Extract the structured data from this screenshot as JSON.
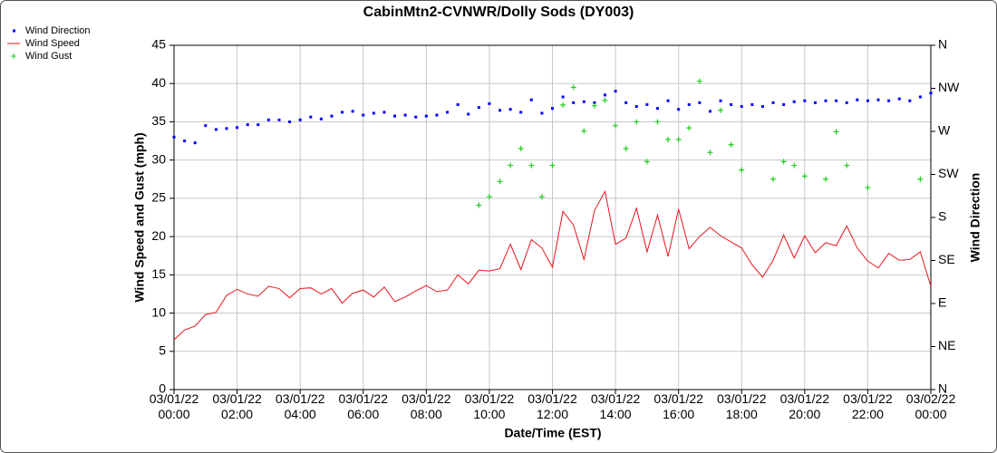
{
  "chart_data": {
    "type": "line",
    "title": "CabinMtn2-CVNWR/Dolly Sods (DY003)",
    "xlabel": "Date/Time (EST)",
    "ylabel": "Wind Speed and Gust (mph)",
    "y2label": "Wind Direction",
    "x": [
      "03/01/22 00:00",
      "03/01/22 00:20",
      "03/01/22 00:40",
      "03/01/22 01:00",
      "03/01/22 01:20",
      "03/01/22 01:40",
      "03/01/22 02:00",
      "03/01/22 02:20",
      "03/01/22 02:40",
      "03/01/22 03:00",
      "03/01/22 03:20",
      "03/01/22 03:40",
      "03/01/22 04:00",
      "03/01/22 04:20",
      "03/01/22 04:40",
      "03/01/22 05:00",
      "03/01/22 05:20",
      "03/01/22 05:40",
      "03/01/22 06:00",
      "03/01/22 06:20",
      "03/01/22 06:40",
      "03/01/22 07:00",
      "03/01/22 07:20",
      "03/01/22 07:40",
      "03/01/22 08:00",
      "03/01/22 08:20",
      "03/01/22 08:40",
      "03/01/22 09:00",
      "03/01/22 09:20",
      "03/01/22 09:40",
      "03/01/22 10:00",
      "03/01/22 10:20",
      "03/01/22 10:40",
      "03/01/22 11:00",
      "03/01/22 11:20",
      "03/01/22 11:40",
      "03/01/22 12:00",
      "03/01/22 12:20",
      "03/01/22 12:40",
      "03/01/22 13:00",
      "03/01/22 13:20",
      "03/01/22 13:40",
      "03/01/22 14:00",
      "03/01/22 14:20",
      "03/01/22 14:40",
      "03/01/22 15:00",
      "03/01/22 15:20",
      "03/01/22 15:40",
      "03/01/22 16:00",
      "03/01/22 16:20",
      "03/01/22 16:40",
      "03/01/22 17:00",
      "03/01/22 17:20",
      "03/01/22 17:40",
      "03/01/22 18:00",
      "03/01/22 18:20",
      "03/01/22 18:40",
      "03/01/22 19:00",
      "03/01/22 19:20",
      "03/01/22 19:40",
      "03/01/22 20:00",
      "03/01/22 20:20",
      "03/01/22 20:40",
      "03/01/22 21:00",
      "03/01/22 21:20",
      "03/01/22 21:40",
      "03/01/22 22:00",
      "03/01/22 22:20",
      "03/01/22 22:40",
      "03/01/22 23:00",
      "03/01/22 23:20",
      "03/01/22 23:40",
      "03/02/22 00:00"
    ],
    "series": [
      {
        "name": "Wind Direction",
        "color": "#0000ff",
        "marker": "dot",
        "axis": "y2",
        "values": [
          264,
          260,
          258,
          276,
          272,
          273,
          274,
          277,
          277,
          282,
          282,
          280,
          282,
          285,
          283,
          286,
          290,
          291,
          287,
          289,
          290,
          286,
          287,
          285,
          286,
          287,
          290,
          298,
          288,
          295,
          299,
          292,
          293,
          290,
          303,
          289,
          294,
          306,
          300,
          301,
          300,
          308,
          312,
          300,
          296,
          298,
          294,
          302,
          293,
          298,
          300,
          291,
          302,
          298,
          296,
          298,
          296,
          300,
          298,
          301,
          302,
          300,
          302,
          302,
          300,
          303,
          302,
          303,
          302,
          304,
          302,
          306,
          310
        ]
      },
      {
        "name": "Wind Speed",
        "color": "#e8141e",
        "marker": "line",
        "values": [
          6.5,
          7.8,
          8.3,
          9.8,
          10.1,
          12.3,
          13.1,
          12.5,
          12.2,
          13.5,
          13.2,
          12.0,
          13.2,
          13.3,
          12.5,
          13.2,
          11.3,
          12.6,
          13.0,
          12.1,
          13.4,
          11.5,
          12.1,
          12.9,
          13.6,
          12.8,
          13.0,
          15.0,
          13.8,
          15.6,
          15.5,
          15.8,
          19.0,
          15.7,
          19.6,
          18.5,
          16.0,
          23.3,
          21.5,
          17.0,
          23.4,
          25.9,
          19.0,
          19.8,
          23.7,
          18.0,
          22.8,
          17.4,
          23.6,
          18.4,
          20.0,
          21.2,
          20.1,
          19.3,
          18.5,
          16.3,
          14.7,
          16.9,
          20.2,
          17.2,
          20.1,
          17.9,
          19.2,
          18.8,
          21.4,
          18.5,
          16.8,
          15.9,
          17.8,
          16.9,
          17.0,
          18.0,
          13.5
        ]
      },
      {
        "name": "Wind Gust",
        "color": "#22cc22",
        "marker": "plus",
        "values": [
          null,
          null,
          null,
          null,
          null,
          null,
          null,
          null,
          null,
          null,
          null,
          null,
          null,
          null,
          null,
          null,
          null,
          null,
          null,
          null,
          null,
          null,
          null,
          null,
          null,
          null,
          null,
          null,
          null,
          24.1,
          25.2,
          27.2,
          29.3,
          31.5,
          29.3,
          25.2,
          29.3,
          37.2,
          39.5,
          33.8,
          37.1,
          37.8,
          34.5,
          31.5,
          35.0,
          29.8,
          35.0,
          32.7,
          32.7,
          34.2,
          40.3,
          31.0,
          36.5,
          32.0,
          28.7,
          null,
          null,
          27.5,
          29.8,
          29.3,
          27.9,
          null,
          27.5,
          33.7,
          29.3,
          null,
          26.4,
          null,
          null,
          null,
          null,
          27.5,
          null
        ]
      }
    ],
    "xlim": [
      "03/01/22 00:00",
      "03/02/22 00:00"
    ],
    "xticks": [
      "03/01/22 00:00",
      "03/01/22 02:00",
      "03/01/22 04:00",
      "03/01/22 06:00",
      "03/01/22 08:00",
      "03/01/22 10:00",
      "03/01/22 12:00",
      "03/01/22 14:00",
      "03/01/22 16:00",
      "03/01/22 18:00",
      "03/01/22 20:00",
      "03/01/22 22:00",
      "03/02/22 00:00"
    ],
    "ylim": [
      0,
      45
    ],
    "yticks": [
      0,
      5,
      10,
      15,
      20,
      25,
      30,
      35,
      40,
      45
    ],
    "y2lim": [
      0,
      360
    ],
    "y2ticks": [
      {
        "value": 0,
        "label": "N"
      },
      {
        "value": 45,
        "label": "NE"
      },
      {
        "value": 90,
        "label": "E"
      },
      {
        "value": 135,
        "label": "SE"
      },
      {
        "value": 180,
        "label": "S"
      },
      {
        "value": 225,
        "label": "SW"
      },
      {
        "value": 270,
        "label": "W"
      },
      {
        "value": 315,
        "label": "NW"
      },
      {
        "value": 360,
        "label": "N"
      }
    ],
    "grid": true,
    "legend": "top-left"
  }
}
